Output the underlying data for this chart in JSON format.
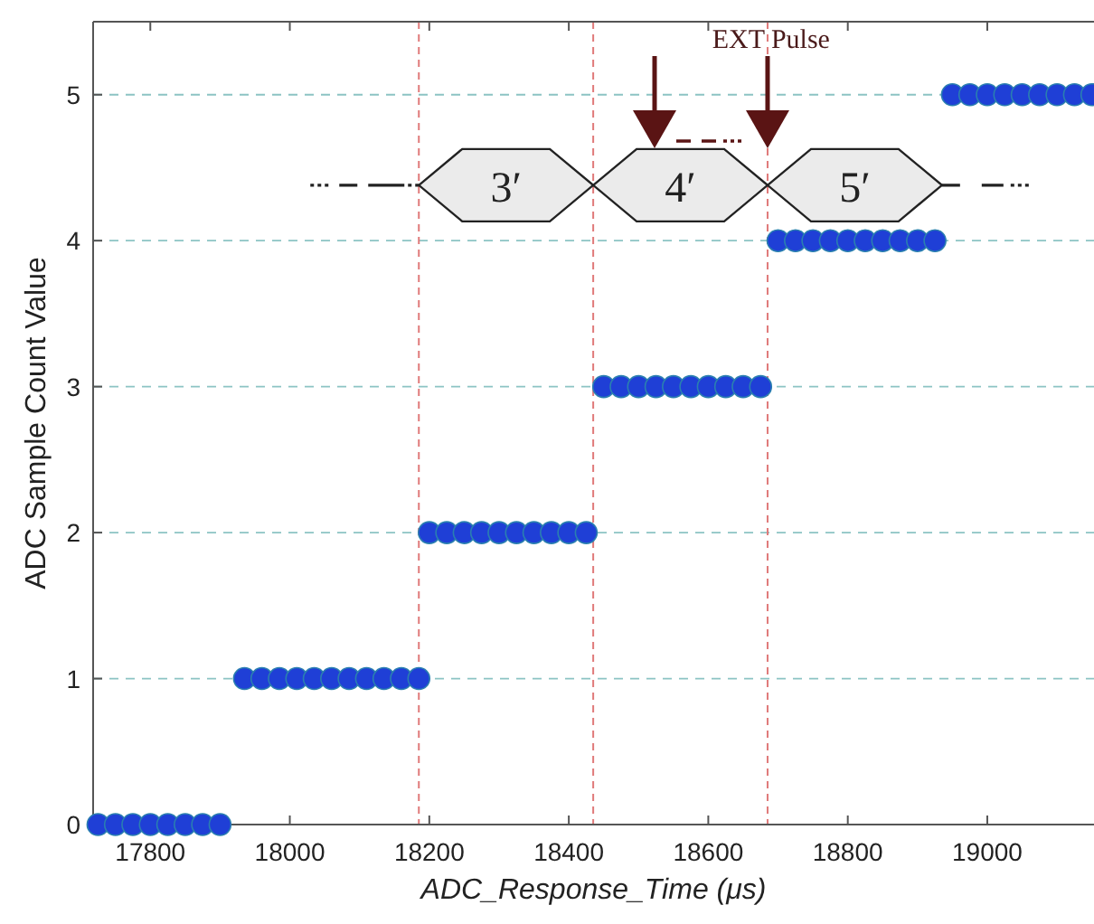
{
  "chart_data": {
    "type": "scatter",
    "xlabel": "ADC_Response_Time (μs)",
    "ylabel": "ADC Sample Count Value",
    "x": [
      17725,
      17750,
      17775,
      17800,
      17825,
      17850,
      17875,
      17900,
      17935,
      17960,
      17985,
      18010,
      18035,
      18060,
      18085,
      18110,
      18135,
      18160,
      18185,
      18200,
      18225,
      18250,
      18275,
      18300,
      18325,
      18350,
      18375,
      18400,
      18425,
      18450,
      18475,
      18500,
      18525,
      18550,
      18575,
      18600,
      18625,
      18650,
      18675,
      18700,
      18725,
      18750,
      18775,
      18800,
      18825,
      18850,
      18875,
      18900,
      18925,
      18950,
      18975,
      19000,
      19025,
      19050,
      19075,
      19100,
      19125,
      19150
    ],
    "series": [
      {
        "color": "#1f3fd6",
        "values": [
          0,
          0,
          0,
          0,
          0,
          0,
          0,
          0,
          1,
          1,
          1,
          1,
          1,
          1,
          1,
          1,
          1,
          1,
          1,
          2,
          2,
          2,
          2,
          2,
          2,
          2,
          2,
          2,
          2,
          3,
          3,
          3,
          3,
          3,
          3,
          3,
          3,
          3,
          3,
          4,
          4,
          4,
          4,
          4,
          4,
          4,
          4,
          4,
          4,
          5,
          5,
          5,
          5,
          5,
          5,
          5,
          5,
          5
        ]
      }
    ],
    "xlim": [
      17718,
      19153
    ],
    "xticks": [
      17800,
      18000,
      18200,
      18400,
      18600,
      18800,
      19000
    ],
    "ylim": [
      0,
      5.5
    ],
    "yticks": [
      0,
      1,
      2,
      3,
      4,
      5
    ],
    "grid": "y",
    "marker": "circle",
    "ref_lines": [
      {
        "axis": "x",
        "value": 18185,
        "color": "#e07a7a",
        "line_style": "dashed"
      },
      {
        "axis": "x",
        "value": 18435,
        "color": "#e07a7a",
        "line_style": "dashed"
      },
      {
        "axis": "x",
        "value": 18685,
        "color": "#e07a7a",
        "line_style": "dashed"
      }
    ],
    "annotations": [
      {
        "text": "EXT Pulse",
        "x": 18690,
        "y": 5.38
      },
      "3′",
      "4′",
      "5′"
    ]
  }
}
